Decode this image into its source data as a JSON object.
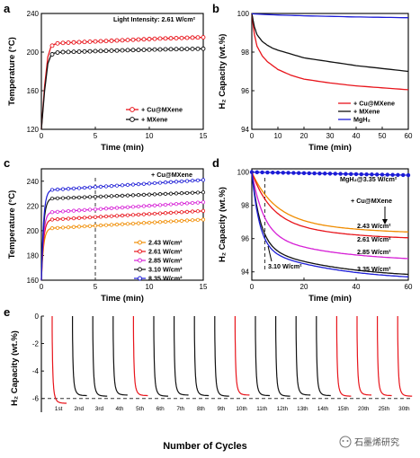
{
  "watermark": "石墨烯研究",
  "chart_data": [
    {
      "panel": "a",
      "type": "line",
      "xlabel": "Time (min)",
      "ylabel": "Temperature (°C)",
      "xlim": [
        0,
        15
      ],
      "ylim": [
        120,
        240
      ],
      "xticks": [
        0,
        5,
        10,
        15
      ],
      "yticks": [
        120,
        160,
        200,
        240
      ],
      "annotation": "Light Intensity: 2.61 W/cm²",
      "legend_position": "lower-right",
      "series": [
        {
          "name": "+ Cu@MXene",
          "color": "#e8141b",
          "marker": "circle",
          "x": [
            0,
            0.3,
            0.6,
            0.9,
            1.2,
            1.5,
            2,
            3,
            4,
            5,
            6,
            7,
            8,
            9,
            10,
            11,
            12,
            13,
            14,
            15
          ],
          "y": [
            120,
            165,
            195,
            206,
            208,
            209,
            209.5,
            210,
            210.5,
            211,
            211.5,
            212,
            212.5,
            213,
            213.5,
            214,
            214.3,
            214.6,
            215,
            215.3
          ]
        },
        {
          "name": "+ MXene",
          "color": "#111111",
          "marker": "circle",
          "x": [
            0,
            0.3,
            0.6,
            0.9,
            1.2,
            1.5,
            2,
            3,
            4,
            5,
            6,
            7,
            8,
            9,
            10,
            11,
            12,
            13,
            14,
            15
          ],
          "y": [
            120,
            160,
            188,
            197,
            199,
            199.5,
            200,
            200.3,
            200.6,
            201,
            201.3,
            201.6,
            202,
            202.2,
            202.5,
            202.7,
            203,
            203.1,
            203.3,
            203.5
          ]
        }
      ]
    },
    {
      "panel": "b",
      "type": "line",
      "xlabel": "Time (min)",
      "ylabel": "H₂ Capacity (wt.%)",
      "xlim": [
        0,
        60
      ],
      "ylim": [
        94,
        100
      ],
      "xticks": [
        0,
        10,
        20,
        30,
        40,
        50,
        60
      ],
      "yticks": [
        94,
        96,
        98,
        100
      ],
      "legend_position": "lower-right",
      "series": [
        {
          "name": "+ Cu@MXene",
          "color": "#e8141b",
          "x": [
            0,
            1,
            2,
            4,
            6,
            8,
            10,
            15,
            20,
            30,
            40,
            50,
            60
          ],
          "y": [
            100,
            98.9,
            98.3,
            97.8,
            97.5,
            97.3,
            97.1,
            96.8,
            96.6,
            96.4,
            96.25,
            96.15,
            96.05
          ]
        },
        {
          "name": "+ MXene",
          "color": "#111111",
          "x": [
            0,
            1,
            2,
            4,
            6,
            8,
            10,
            15,
            20,
            30,
            40,
            50,
            60
          ],
          "y": [
            100,
            99.3,
            98.9,
            98.55,
            98.35,
            98.2,
            98.1,
            97.9,
            97.7,
            97.5,
            97.3,
            97.15,
            97.0
          ]
        },
        {
          "name": "MgH₂",
          "color": "#1c1cd6",
          "x": [
            0,
            10,
            20,
            30,
            40,
            50,
            60
          ],
          "y": [
            99.98,
            99.92,
            99.88,
            99.85,
            99.82,
            99.8,
            99.78
          ]
        }
      ]
    },
    {
      "panel": "c",
      "type": "line",
      "xlabel": "Time (min)",
      "ylabel": "Temperature (°C)",
      "xlim": [
        0,
        15
      ],
      "ylim": [
        160,
        250
      ],
      "xticks": [
        0,
        5,
        10,
        15
      ],
      "yticks": [
        160,
        180,
        200,
        220,
        240
      ],
      "annotation": "+ Cu@MXene",
      "dashed_vline_x": 5,
      "legend_position": "lower-right",
      "series": [
        {
          "name": "2.43 W/cm²",
          "color": "#f08c00",
          "plateau": 202,
          "end": 209
        },
        {
          "name": "2.61 W/cm²",
          "color": "#e8141b",
          "plateau": 209,
          "end": 216
        },
        {
          "name": "2.85 W/cm²",
          "color": "#d61fd6",
          "plateau": 215,
          "end": 223
        },
        {
          "name": "3.10 W/cm²",
          "color": "#111111",
          "plateau": 226,
          "end": 231
        },
        {
          "name": "3.35 W/cm²",
          "color": "#1c1cd6",
          "plateau": 233,
          "end": 241
        }
      ]
    },
    {
      "panel": "d",
      "type": "line",
      "xlabel": "Time (min)",
      "ylabel": "H₂ Capacity (wt.%)",
      "xlim": [
        0,
        60
      ],
      "ylim": [
        93.5,
        100.2
      ],
      "xticks": [
        0,
        20,
        40,
        60
      ],
      "yticks": [
        94,
        96,
        98,
        100
      ],
      "annotations": [
        "MgH₂@3.35 W/cm²",
        "+ Cu@MXene",
        "3.10 W/cm²"
      ],
      "dashed_vline_x": 5,
      "series": [
        {
          "name": "MgH₂@3.35 W/cm²",
          "color": "#1c1cd6",
          "final": 99.82,
          "k": 0.01,
          "flat": true
        },
        {
          "name": "2.43 W/cm²",
          "color": "#f08c00",
          "final": 96.4,
          "k": 0.12
        },
        {
          "name": "2.61 W/cm²",
          "color": "#e8141b",
          "final": 96.05,
          "k": 0.14
        },
        {
          "name": "2.85 W/cm²",
          "color": "#d61fd6",
          "final": 94.8,
          "k": 0.22
        },
        {
          "name": "3.10 W/cm²",
          "color": "#111111",
          "final": 93.85,
          "k": 0.3
        },
        {
          "name": "3.35 W/cm²",
          "color": "#1c1cd6",
          "final": 93.7,
          "k": 0.34
        }
      ],
      "right_labels": [
        "2.43 W/cm²",
        "2.61 W/cm²",
        "2.85 W/cm²",
        "3.35 W/cm²"
      ]
    },
    {
      "panel": "e",
      "type": "line",
      "xlabel": "Number of Cycles",
      "ylabel": "H₂ Capacity (wt.%)",
      "ylim": [
        -7,
        0
      ],
      "yticks": [
        0,
        -2,
        -4,
        -6
      ],
      "dashed_hline_y": -6,
      "cycles": [
        {
          "label": "1st",
          "color": "#e8141b"
        },
        {
          "label": "2nd",
          "color": "#111111"
        },
        {
          "label": "3rd",
          "color": "#111111"
        },
        {
          "label": "4th",
          "color": "#111111"
        },
        {
          "label": "5th",
          "color": "#e8141b"
        },
        {
          "label": "6th",
          "color": "#111111"
        },
        {
          "label": "7th",
          "color": "#111111"
        },
        {
          "label": "8th",
          "color": "#111111"
        },
        {
          "label": "9th",
          "color": "#111111"
        },
        {
          "label": "10th",
          "color": "#e8141b"
        },
        {
          "label": "11th",
          "color": "#111111"
        },
        {
          "label": "12th",
          "color": "#111111"
        },
        {
          "label": "13th",
          "color": "#111111"
        },
        {
          "label": "14th",
          "color": "#111111"
        },
        {
          "label": "15th",
          "color": "#e8141b"
        },
        {
          "label": "20th",
          "color": "#e8141b"
        },
        {
          "label": "25th",
          "color": "#e8141b"
        },
        {
          "label": "30th",
          "color": "#e8141b"
        }
      ]
    }
  ]
}
